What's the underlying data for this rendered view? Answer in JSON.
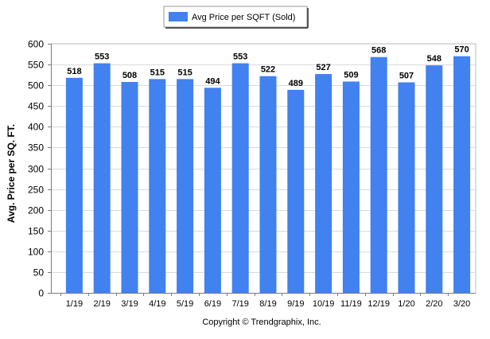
{
  "chart_data": {
    "type": "bar",
    "title": "",
    "xlabel": "",
    "ylabel": "Avg. Price per SQ. FT.",
    "categories": [
      "1/19",
      "2/19",
      "3/19",
      "4/19",
      "5/19",
      "6/19",
      "7/19",
      "8/19",
      "9/19",
      "10/19",
      "11/19",
      "12/19",
      "1/20",
      "2/20",
      "3/20"
    ],
    "series": [
      {
        "name": "Avg Price per SQFT (Sold)",
        "values": [
          518,
          553,
          508,
          515,
          515,
          494,
          553,
          522,
          489,
          527,
          509,
          568,
          507,
          548,
          570
        ],
        "color": "#4181f0"
      }
    ],
    "ylim": [
      0,
      600
    ],
    "yticks": [
      0,
      50,
      100,
      150,
      200,
      250,
      300,
      350,
      400,
      450,
      500,
      550,
      600
    ],
    "grid": true,
    "legend_position": "top-center",
    "data_labels": true
  },
  "footer": {
    "copyright": "Copyright © Trendgraphix, Inc."
  }
}
